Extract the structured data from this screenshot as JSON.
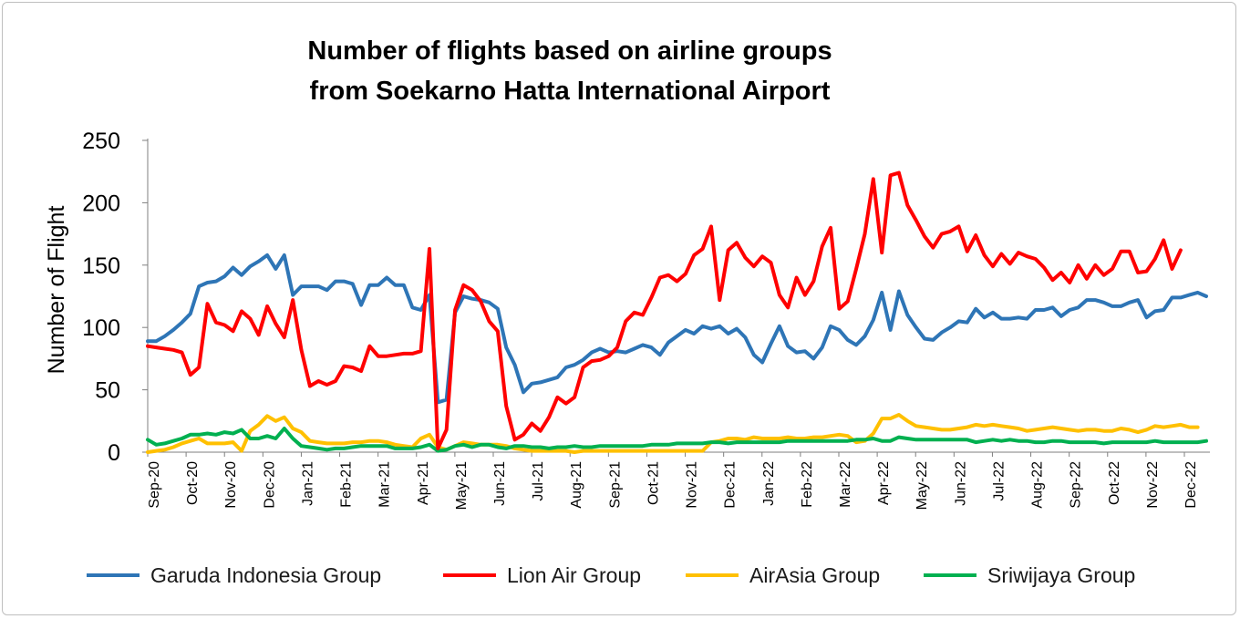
{
  "chart_data": {
    "type": "line",
    "title_lines": [
      "Number of flights based on airline groups",
      "from Soekarno Hatta International Airport"
    ],
    "xlabel": "",
    "ylabel": "Number of Flight",
    "ylim": [
      0,
      250
    ],
    "yticks": [
      0,
      50,
      100,
      150,
      200,
      250
    ],
    "grid": false,
    "legend_position": "bottom",
    "x_tick_labels": [
      "Sep-20",
      "Oct-20",
      "Nov-20",
      "Dec-20",
      "Jan-21",
      "Feb-21",
      "Mar-21",
      "Apr-21",
      "May-21",
      "Jun-21",
      "Jul-21",
      "Aug-21",
      "Sep-21",
      "Oct-21",
      "Nov-21",
      "Dec-21",
      "Jan-22",
      "Feb-22",
      "Mar-22",
      "Apr-22",
      "May-22",
      "Jun-22",
      "Jul-22",
      "Aug-22",
      "Sep-22",
      "Oct-22",
      "Nov-22",
      "Dec-22"
    ],
    "series": [
      {
        "name": "Garuda Indonesia Group",
        "color": "#2E75B6",
        "values": [
          89,
          89,
          93,
          98,
          104,
          111,
          133,
          136,
          137,
          141,
          148,
          142,
          149,
          153,
          158,
          147,
          158,
          126,
          133,
          133,
          133,
          130,
          137,
          137,
          135,
          118,
          134,
          134,
          140,
          134,
          134,
          116,
          114,
          126,
          40,
          42,
          112,
          125,
          123,
          122,
          120,
          115,
          84,
          70,
          48,
          55,
          56,
          58,
          60,
          68,
          70,
          74,
          80,
          83,
          80,
          81,
          80,
          83,
          86,
          84,
          78,
          88,
          93,
          98,
          95,
          101,
          99,
          101,
          95,
          99,
          92,
          78,
          72,
          87,
          101,
          85,
          80,
          81,
          75,
          84,
          101,
          98,
          90,
          86,
          93,
          106,
          128,
          98,
          129,
          110,
          100,
          91,
          90,
          96,
          100,
          105,
          104,
          115,
          108,
          112,
          107,
          107,
          108,
          107,
          114,
          114,
          116,
          109,
          114,
          116,
          122,
          122,
          120,
          117,
          117,
          120,
          122,
          108,
          113,
          114,
          124,
          124,
          126,
          128,
          125
        ]
      },
      {
        "name": "Lion Air Group",
        "color": "#FF0000",
        "values": [
          85,
          84,
          83,
          82,
          80,
          62,
          68,
          119,
          104,
          102,
          97,
          113,
          107,
          94,
          117,
          103,
          92,
          122,
          82,
          53,
          57,
          54,
          57,
          69,
          68,
          65,
          85,
          77,
          77,
          78,
          79,
          79,
          81,
          163,
          3,
          18,
          114,
          134,
          130,
          121,
          105,
          97,
          37,
          10,
          14,
          23,
          17,
          28,
          44,
          39,
          44,
          68,
          73,
          74,
          77,
          84,
          105,
          112,
          110,
          124,
          140,
          142,
          137,
          143,
          158,
          163,
          181,
          122,
          162,
          168,
          156,
          149,
          157,
          152,
          126,
          116,
          140,
          126,
          137,
          165,
          180,
          115,
          121,
          147,
          175,
          219,
          160,
          222,
          224,
          198,
          186,
          173,
          164,
          175,
          177,
          181,
          161,
          174,
          158,
          149,
          159,
          151,
          160,
          157,
          155,
          148,
          138,
          144,
          136,
          150,
          139,
          150,
          142,
          147,
          161,
          161,
          144,
          145,
          155,
          170,
          147,
          162
        ]
      },
      {
        "name": "AirAsia Group",
        "color": "#FFC000",
        "values": [
          0,
          1,
          2,
          4,
          7,
          9,
          11,
          7,
          7,
          7,
          8,
          1,
          17,
          22,
          29,
          25,
          28,
          19,
          16,
          9,
          8,
          7,
          7,
          7,
          8,
          8,
          9,
          9,
          8,
          6,
          5,
          4,
          11,
          14,
          4,
          2,
          5,
          8,
          7,
          6,
          6,
          6,
          5,
          3,
          2,
          1,
          1,
          1,
          1,
          1,
          0,
          1,
          1,
          1,
          1,
          1,
          1,
          1,
          1,
          1,
          1,
          1,
          1,
          1,
          1,
          1,
          8,
          9,
          11,
          11,
          10,
          12,
          11,
          11,
          11,
          12,
          11,
          11,
          12,
          12,
          13,
          14,
          13,
          8,
          9,
          15,
          27,
          27,
          30,
          25,
          21,
          20,
          19,
          18,
          18,
          19,
          20,
          22,
          21,
          22,
          21,
          20,
          19,
          17,
          18,
          19,
          20,
          19,
          18,
          17,
          18,
          18,
          17,
          17,
          19,
          18,
          16,
          18,
          21,
          20,
          21,
          22,
          20,
          20
        ]
      },
      {
        "name": "Sriwijaya Group",
        "color": "#00B050",
        "values": [
          10,
          6,
          7,
          9,
          11,
          14,
          14,
          15,
          14,
          16,
          15,
          18,
          11,
          11,
          13,
          11,
          19,
          11,
          5,
          4,
          3,
          2,
          3,
          3,
          4,
          5,
          5,
          5,
          5,
          3,
          3,
          3,
          4,
          6,
          1,
          2,
          5,
          6,
          4,
          6,
          6,
          4,
          3,
          5,
          5,
          4,
          4,
          3,
          4,
          4,
          5,
          4,
          4,
          5,
          5,
          5,
          5,
          5,
          5,
          6,
          6,
          6,
          7,
          7,
          7,
          7,
          8,
          8,
          7,
          8,
          8,
          8,
          8,
          8,
          8,
          9,
          9,
          9,
          9,
          9,
          9,
          9,
          9,
          10,
          10,
          11,
          9,
          9,
          12,
          11,
          10,
          10,
          10,
          10,
          10,
          10,
          10,
          8,
          9,
          10,
          9,
          10,
          9,
          9,
          8,
          8,
          9,
          9,
          8,
          8,
          8,
          8,
          7,
          8,
          8,
          8,
          8,
          8,
          9,
          8,
          8,
          8,
          8,
          8,
          9
        ]
      }
    ]
  }
}
